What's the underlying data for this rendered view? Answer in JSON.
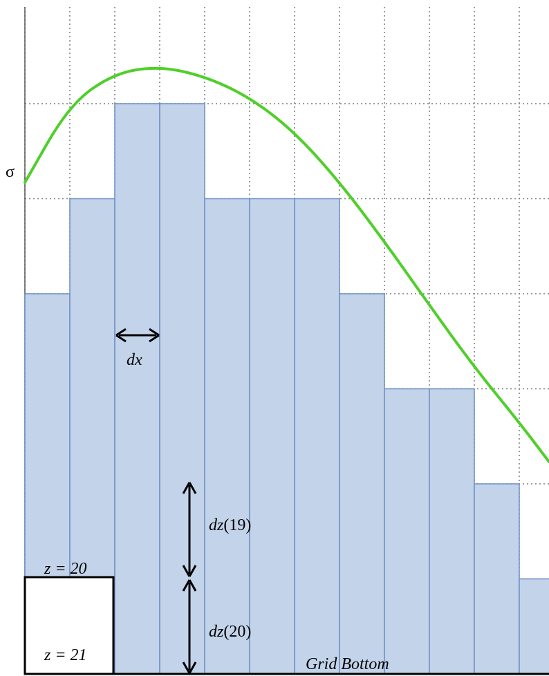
{
  "labels": {
    "sigma": "σ",
    "dx": "dx",
    "dz19_var": "dz",
    "dz19_idx": "(19)",
    "dz20_var": "dz",
    "dz20_idx": "(20)",
    "z20": "z = 20",
    "z21": "z = 21",
    "grid_bottom": "Grid  Bottom"
  },
  "colors": {
    "column_fill": "#c3d3ea",
    "column_edge": "#6d8fc4",
    "grid_line": "#7a7a7a",
    "curve": "#4fcf2a",
    "arrow": "#000000",
    "box": "#000000"
  },
  "topography": {
    "description_levels": "column heights in grid levels above grid bottom",
    "column_top_levels": [
      4,
      5,
      6,
      6,
      5,
      5,
      5,
      4,
      3,
      3,
      2,
      1
    ],
    "grid_levels": 6,
    "grid_columns": 12
  },
  "surface_curve": {
    "peak_column": 3.0,
    "shape": "smooth hump"
  }
}
